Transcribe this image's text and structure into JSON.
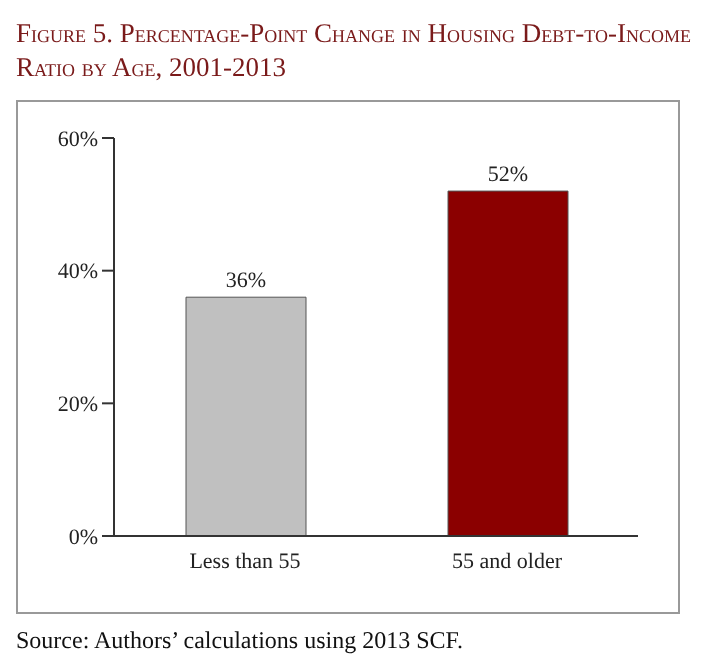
{
  "chart_data": {
    "type": "bar",
    "title": "Figure 5. Percentage-Point Change in Housing Debt-to-Income Ratio by Age, 2001-2013",
    "categories": [
      "Less than 55",
      "55 and older"
    ],
    "values": [
      36,
      52
    ],
    "colors": [
      "#c0c0c0",
      "#8b0000"
    ],
    "value_labels": [
      "36%",
      "52%"
    ],
    "ylim": [
      0,
      60
    ],
    "yticks": [
      {
        "value": 0,
        "label": "0%"
      },
      {
        "value": 20,
        "label": "20%"
      },
      {
        "value": 40,
        "label": "40%"
      },
      {
        "value": 60,
        "label": "60%"
      }
    ],
    "grid": false,
    "annotations": [
      "Source: Authors’ calculations using 2013 SCF."
    ]
  }
}
